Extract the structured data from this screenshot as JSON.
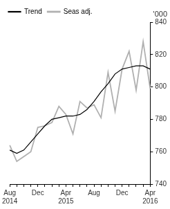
{
  "chart_data": {
    "type": "line",
    "y_label": "'000",
    "categories": [
      "Aug 2014",
      null,
      null,
      null,
      "Dec",
      null,
      null,
      null,
      "Apr 2015",
      null,
      null,
      null,
      "Aug",
      null,
      null,
      null,
      "Dec",
      null,
      null,
      null,
      "Apr 2016"
    ],
    "series": [
      {
        "name": "Trend",
        "color": "#000000",
        "values": [
          761,
          759,
          761,
          766,
          771,
          776,
          780,
          781,
          782,
          782,
          783,
          786,
          791,
          797,
          802,
          808,
          811,
          812,
          813,
          813,
          811
        ]
      },
      {
        "name": "Seas adj.",
        "color": "#b0b0b0",
        "values": [
          764,
          754,
          757,
          760,
          775,
          776,
          778,
          788,
          783,
          771,
          791,
          787,
          789,
          781,
          809,
          785,
          811,
          822,
          798,
          828,
          799
        ]
      }
    ],
    "ylim": [
      740,
      840
    ],
    "yticks": [
      740,
      760,
      780,
      800,
      820,
      840
    ],
    "grid": false,
    "legend": "top-left"
  }
}
